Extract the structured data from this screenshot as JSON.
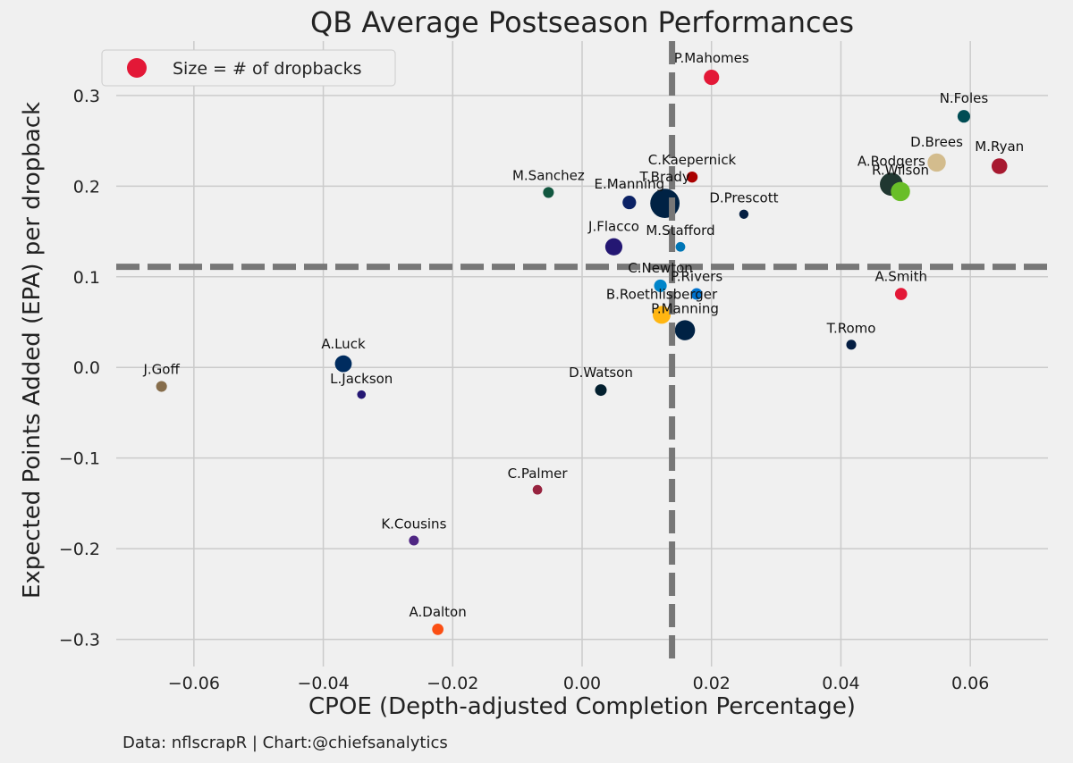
{
  "chart_data": {
    "type": "scatter",
    "title": "QB Average Postseason Performances",
    "xlabel": "CPOE (Depth-adjusted Completion Percentage)",
    "ylabel": "Expected Points Added (EPA) per dropback",
    "xlim": [
      -0.072,
      0.072
    ],
    "ylim": [
      -0.33,
      0.36
    ],
    "xticks": [
      -0.06,
      -0.04,
      -0.02,
      0.0,
      0.02,
      0.04,
      0.06
    ],
    "xtick_labels": [
      "−0.06",
      "−0.04",
      "−0.02",
      "0.00",
      "0.02",
      "0.04",
      "0.06"
    ],
    "yticks": [
      -0.3,
      -0.2,
      -0.1,
      0.0,
      0.1,
      0.2,
      0.3
    ],
    "ytick_labels": [
      "−0.3",
      "−0.2",
      "−0.1",
      "0.0",
      "0.1",
      "0.2",
      "0.3"
    ],
    "grid": true,
    "legend_placement": "top-left",
    "legend_label": "Size = # of dropbacks",
    "legend_color": "#e31837",
    "reference_lines": {
      "x_mean": 0.0139,
      "y_mean": 0.111
    },
    "credit": "Data: nflscrapR | Chart:@chiefsanalytics",
    "points": [
      {
        "label": "P.Mahomes",
        "x": 0.02,
        "y": 0.32,
        "size": 190,
        "color": "#e31837"
      },
      {
        "label": "N.Foles",
        "x": 0.059,
        "y": 0.277,
        "size": 130,
        "color": "#004c54"
      },
      {
        "label": "M.Ryan",
        "x": 0.0645,
        "y": 0.222,
        "size": 200,
        "color": "#a71930"
      },
      {
        "label": "D.Brees",
        "x": 0.0548,
        "y": 0.226,
        "size": 270,
        "color": "#d3bc8d"
      },
      {
        "label": "A.Rodgers",
        "x": 0.0478,
        "y": 0.202,
        "size": 430,
        "color": "#203731"
      },
      {
        "label": "R.Wilson",
        "x": 0.0492,
        "y": 0.194,
        "size": 300,
        "color": "#69be28"
      },
      {
        "label": "C.Kaepernick",
        "x": 0.017,
        "y": 0.21,
        "size": 100,
        "color": "#aa0000"
      },
      {
        "label": "M.Sanchez",
        "x": -0.0052,
        "y": 0.193,
        "size": 95,
        "color": "#125740"
      },
      {
        "label": "E.Manning",
        "x": 0.0073,
        "y": 0.182,
        "size": 150,
        "color": "#0b2265"
      },
      {
        "label": "T.Brady",
        "x": 0.0128,
        "y": 0.181,
        "size": 700,
        "color": "#002244"
      },
      {
        "label": "D.Prescott",
        "x": 0.025,
        "y": 0.169,
        "size": 70,
        "color": "#041e42"
      },
      {
        "label": "J.Flacco",
        "x": 0.0049,
        "y": 0.133,
        "size": 240,
        "color": "#241773"
      },
      {
        "label": "M.Stafford",
        "x": 0.0152,
        "y": 0.133,
        "size": 75,
        "color": "#0076b6"
      },
      {
        "label": "C.Newton",
        "x": 0.0121,
        "y": 0.09,
        "size": 130,
        "color": "#0085ca"
      },
      {
        "label": "P.Rivers",
        "x": 0.0177,
        "y": 0.081,
        "size": 110,
        "color": "#0073cf"
      },
      {
        "label": "B.Roethlisberger",
        "x": 0.0123,
        "y": 0.058,
        "size": 260,
        "color": "#ffb612"
      },
      {
        "label": "P.Manning",
        "x": 0.0159,
        "y": 0.041,
        "size": 330,
        "color": "#002244"
      },
      {
        "label": "A.Smith",
        "x": 0.0493,
        "y": 0.081,
        "size": 120,
        "color": "#e31837"
      },
      {
        "label": "T.Romo",
        "x": 0.0416,
        "y": 0.025,
        "size": 80,
        "color": "#041e42"
      },
      {
        "label": "A.Luck",
        "x": -0.0369,
        "y": 0.004,
        "size": 230,
        "color": "#002c5f"
      },
      {
        "label": "L.Jackson",
        "x": -0.0341,
        "y": -0.03,
        "size": 60,
        "color": "#241773"
      },
      {
        "label": "J.Goff",
        "x": -0.065,
        "y": -0.021,
        "size": 95,
        "color": "#866d4b"
      },
      {
        "label": "D.Watson",
        "x": 0.0029,
        "y": -0.025,
        "size": 110,
        "color": "#03202f"
      },
      {
        "label": "C.Palmer",
        "x": -0.0069,
        "y": -0.135,
        "size": 75,
        "color": "#97233f"
      },
      {
        "label": "K.Cousins",
        "x": -0.026,
        "y": -0.191,
        "size": 80,
        "color": "#4f2683"
      },
      {
        "label": "A.Dalton",
        "x": -0.0223,
        "y": -0.289,
        "size": 105,
        "color": "#fb4f14"
      }
    ]
  }
}
